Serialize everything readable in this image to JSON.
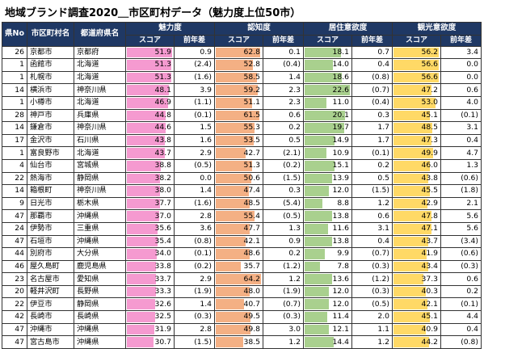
{
  "title": "地域ブランド調査2020＿市区町村データ（魅力度上位50市）",
  "colors": {
    "header_bg": "#1f3864",
    "attract": "#f59ad0",
    "recog": "#f4b084",
    "resid": "#a9d08e",
    "tour": "#ffd966"
  },
  "scales": {
    "attract_max": 51.9,
    "recog_max": 64.2,
    "resid_max": 22.6,
    "tour_max": 56.6
  },
  "headers": {
    "rank": "県No",
    "city": "市区町村名",
    "pref": "都道府県名",
    "attract": "魅力度",
    "recog": "認知度",
    "resid": "居住意欲度",
    "tour": "観光意欲度",
    "score": "スコア",
    "diff": "前年差"
  },
  "rows": [
    {
      "no": "26",
      "city": "京都市",
      "pref": "京都府",
      "a": "51.9",
      "ad": "0.9",
      "r": "62.8",
      "rd": "0.1",
      "s": "18.1",
      "sd": "0.7",
      "t": "56.2",
      "td": "3.4"
    },
    {
      "no": "1",
      "city": "函館市",
      "pref": "北海道",
      "a": "51.3",
      "ad": "(2.4)",
      "r": "52.8",
      "rd": "(0.4)",
      "s": "14.0",
      "sd": "0.4",
      "t": "56.6",
      "td": "0.0"
    },
    {
      "no": "1",
      "city": "札幌市",
      "pref": "北海道",
      "a": "51.3",
      "ad": "(1.6)",
      "r": "58.5",
      "rd": "1.4",
      "s": "18.6",
      "sd": "(0.8)",
      "t": "56.6",
      "td": "0.0"
    },
    {
      "no": "14",
      "city": "横浜市",
      "pref": "神奈川県",
      "a": "48.1",
      "ad": "3.9",
      "r": "59.2",
      "rd": "2.3",
      "s": "22.6",
      "sd": "(0.7)",
      "t": "47.2",
      "td": "0.6"
    },
    {
      "no": "1",
      "city": "小樽市",
      "pref": "北海道",
      "a": "46.9",
      "ad": "(1.1)",
      "r": "51.1",
      "rd": "2.3",
      "s": "11.0",
      "sd": "(0.4)",
      "t": "53.0",
      "td": "4.0"
    },
    {
      "no": "28",
      "city": "神戸市",
      "pref": "兵庫県",
      "a": "44.8",
      "ad": "(0.1)",
      "r": "61.5",
      "rd": "0.6",
      "s": "20.1",
      "sd": "0.3",
      "t": "45.1",
      "td": "(0.1)"
    },
    {
      "no": "14",
      "city": "鎌倉市",
      "pref": "神奈川県",
      "a": "44.6",
      "ad": "1.5",
      "r": "55.3",
      "rd": "0.2",
      "s": "19.7",
      "sd": "1.7",
      "t": "48.5",
      "td": "3.1"
    },
    {
      "no": "17",
      "city": "金沢市",
      "pref": "石川県",
      "a": "43.8",
      "ad": "1.6",
      "r": "53.5",
      "rd": "0.5",
      "s": "14.9",
      "sd": "1.7",
      "t": "47.3",
      "td": "0.4"
    },
    {
      "no": "1",
      "city": "富良野市",
      "pref": "北海道",
      "a": "43.7",
      "ad": "2.9",
      "r": "42.7",
      "rd": "(2.1)",
      "s": "10.9",
      "sd": "(0.1)",
      "t": "49.9",
      "td": "4.7"
    },
    {
      "no": "4",
      "city": "仙台市",
      "pref": "宮城県",
      "a": "38.8",
      "ad": "(0.5)",
      "r": "51.3",
      "rd": "(0.2)",
      "s": "15.1",
      "sd": "0.2",
      "t": "46.0",
      "td": "1.3"
    },
    {
      "no": "22",
      "city": "熱海市",
      "pref": "静岡県",
      "a": "38.2",
      "ad": "0.0",
      "r": "50.6",
      "rd": "(1.5)",
      "s": "13.9",
      "sd": "0.5",
      "t": "43.8",
      "td": "(0.6)"
    },
    {
      "no": "14",
      "city": "箱根町",
      "pref": "神奈川県",
      "a": "38.0",
      "ad": "1.4",
      "r": "47.4",
      "rd": "0.3",
      "s": "12.0",
      "sd": "(1.5)",
      "t": "45.5",
      "td": "(1.8)"
    },
    {
      "no": "9",
      "city": "日光市",
      "pref": "栃木県",
      "a": "37.7",
      "ad": "(1.6)",
      "r": "48.5",
      "rd": "(5.4)",
      "s": "8.8",
      "sd": "1.2",
      "t": "42.9",
      "td": "2.1"
    },
    {
      "no": "47",
      "city": "那覇市",
      "pref": "沖縄県",
      "a": "37.0",
      "ad": "2.8",
      "r": "55.4",
      "rd": "(0.5)",
      "s": "13.8",
      "sd": "0.6",
      "t": "47.8",
      "td": "5.6"
    },
    {
      "no": "24",
      "city": "伊勢市",
      "pref": "三重県",
      "a": "35.6",
      "ad": "3.6",
      "r": "47.7",
      "rd": "1.3",
      "s": "11.6",
      "sd": "3.1",
      "t": "47.1",
      "td": "5.6"
    },
    {
      "no": "47",
      "city": "石垣市",
      "pref": "沖縄県",
      "a": "35.4",
      "ad": "(0.8)",
      "r": "42.1",
      "rd": "0.9",
      "s": "13.8",
      "sd": "0.4",
      "t": "43.7",
      "td": "(3.4)"
    },
    {
      "no": "44",
      "city": "別府市",
      "pref": "大分県",
      "a": "34.0",
      "ad": "(0.1)",
      "r": "48.6",
      "rd": "0.2",
      "s": "9.9",
      "sd": "(0.7)",
      "t": "41.9",
      "td": "(0.6)"
    },
    {
      "no": "46",
      "city": "屋久島町",
      "pref": "鹿児島県",
      "a": "33.8",
      "ad": "(0.2)",
      "r": "35.7",
      "rd": "(1.2)",
      "s": "7.8",
      "sd": "(0.3)",
      "t": "43.4",
      "td": "(0.3)"
    },
    {
      "no": "23",
      "city": "名古屋市",
      "pref": "愛知県",
      "a": "33.7",
      "ad": "2.9",
      "r": "64.2",
      "rd": "1.2",
      "s": "13.6",
      "sd": "(1.2)",
      "t": "37.3",
      "td": "0.6"
    },
    {
      "no": "20",
      "city": "軽井沢町",
      "pref": "長野県",
      "a": "33.3",
      "ad": "(1.9)",
      "r": "48.0",
      "rd": "(1.9)",
      "s": "12.0",
      "sd": "(0.3)",
      "t": "40.3",
      "td": "0.2"
    },
    {
      "no": "22",
      "city": "伊豆市",
      "pref": "静岡県",
      "a": "32.6",
      "ad": "1.4",
      "r": "40.7",
      "rd": "(0.7)",
      "s": "12.0",
      "sd": "(0.5)",
      "t": "42.1",
      "td": "(0.1)"
    },
    {
      "no": "42",
      "city": "長崎市",
      "pref": "長崎県",
      "a": "32.5",
      "ad": "(0.3)",
      "r": "49.5",
      "rd": "(0.3)",
      "s": "11.4",
      "sd": "2.0",
      "t": "45.1",
      "td": "4.4"
    },
    {
      "no": "47",
      "city": "沖縄市",
      "pref": "沖縄県",
      "a": "31.9",
      "ad": "2.8",
      "r": "49.8",
      "rd": "3.0",
      "s": "12.1",
      "sd": "1.1",
      "t": "40.9",
      "td": "0.4"
    },
    {
      "no": "47",
      "city": "宮古島市",
      "pref": "沖縄県",
      "a": "30.7",
      "ad": "(1.5)",
      "r": "38.5",
      "rd": "1.2",
      "s": "14.4",
      "sd": "1.2",
      "t": "44.2",
      "td": "(0.8)"
    }
  ]
}
